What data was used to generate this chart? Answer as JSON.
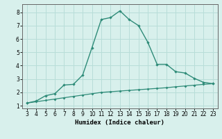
{
  "xlabel": "Humidex (Indice chaleur)",
  "x_values": [
    3,
    4,
    5,
    6,
    7,
    8,
    9,
    10,
    11,
    12,
    13,
    14,
    15,
    16,
    17,
    18,
    19,
    20,
    21,
    22,
    23
  ],
  "y_main": [
    1.2,
    1.35,
    1.75,
    1.9,
    2.55,
    2.6,
    3.3,
    5.35,
    7.45,
    7.6,
    8.1,
    7.45,
    7.0,
    5.75,
    4.1,
    4.1,
    3.55,
    3.45,
    3.05,
    2.75,
    2.65
  ],
  "y_line2": [
    1.2,
    1.3,
    1.4,
    1.5,
    1.6,
    1.7,
    1.8,
    1.9,
    2.0,
    2.05,
    2.1,
    2.15,
    2.2,
    2.25,
    2.3,
    2.35,
    2.42,
    2.48,
    2.54,
    2.6,
    2.65
  ],
  "line_color": "#2e8b78",
  "bg_color": "#d8f0ec",
  "grid_color": "#b8ddd8",
  "ylim": [
    0.8,
    8.6
  ],
  "xlim": [
    2.5,
    23.5
  ],
  "yticks": [
    1,
    2,
    3,
    4,
    5,
    6,
    7,
    8
  ],
  "xticks": [
    3,
    4,
    5,
    6,
    7,
    8,
    9,
    10,
    11,
    12,
    13,
    14,
    15,
    16,
    17,
    18,
    19,
    20,
    21,
    22,
    23
  ]
}
